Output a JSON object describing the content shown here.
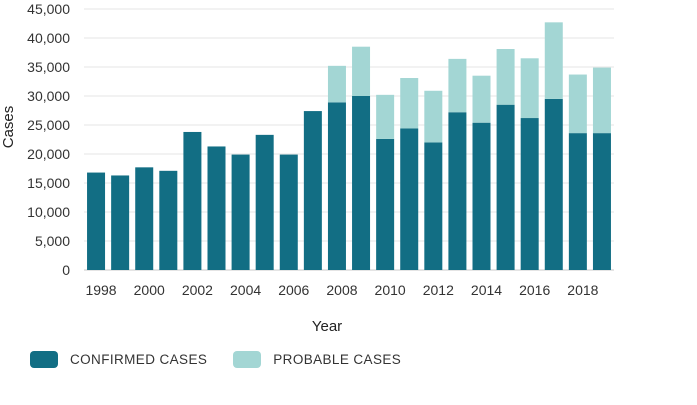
{
  "chart_data": {
    "type": "stacked-bar",
    "x_label": "Year",
    "y_label": "Cases",
    "ylim": [
      0,
      45000
    ],
    "y_ticks": [
      0,
      5000,
      10000,
      15000,
      20000,
      25000,
      30000,
      35000,
      40000,
      45000
    ],
    "y_tick_labels": [
      "0",
      "5,000",
      "10,000",
      "15,000",
      "20,000",
      "25,000",
      "30,000",
      "35,000",
      "40,000",
      "45,000"
    ],
    "x_tick_labels": [
      "1998",
      "2000",
      "2002",
      "2004",
      "2006",
      "2008",
      "2010",
      "2012",
      "2014",
      "2016",
      "2018"
    ],
    "categories": [
      "1998",
      "1999",
      "2000",
      "2001",
      "2002",
      "2003",
      "2004",
      "2005",
      "2006",
      "2007",
      "2008",
      "2009",
      "2010",
      "2011",
      "2012",
      "2013",
      "2014",
      "2015",
      "2016",
      "2017",
      "2018",
      "2019"
    ],
    "series": [
      {
        "name": "CONFIRMED CASES",
        "color": "#126e84",
        "values": [
          16800,
          16300,
          17700,
          17100,
          23800,
          21300,
          19900,
          23300,
          19900,
          27400,
          28900,
          30000,
          22600,
          24400,
          22000,
          27200,
          25400,
          28500,
          26200,
          29500,
          23600,
          23600
        ]
      },
      {
        "name": "PROBABLE CASES",
        "color": "#a3d6d4",
        "values": [
          0,
          0,
          0,
          0,
          0,
          0,
          0,
          0,
          0,
          0,
          6300,
          8500,
          7600,
          8700,
          8900,
          9200,
          8100,
          9600,
          10300,
          13200,
          10100,
          11300
        ]
      }
    ]
  }
}
